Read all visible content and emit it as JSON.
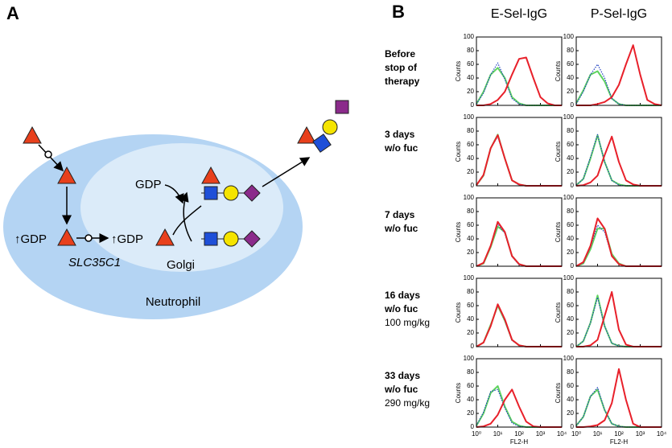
{
  "panel_a": {
    "label": "A",
    "gdp_donor": "GDP",
    "gdp_cytosol": "↑GDP",
    "gdp_golgi": "↑GDP",
    "transporter": "SLC35C1",
    "golgi": "Golgi",
    "cell": "Neutrophil"
  },
  "panel_b": {
    "label": "B",
    "columns": [
      "E-Sel-IgG",
      "P-Sel-IgG"
    ],
    "rows": [
      {
        "lines": [
          "Before",
          "stop of",
          "therapy"
        ]
      },
      {
        "lines": [
          "3 days",
          "w/o fuc"
        ]
      },
      {
        "lines": [
          "7 days",
          "w/o fuc"
        ]
      },
      {
        "lines": [
          "16 days",
          "w/o fuc"
        ],
        "dose": "100 mg/kg"
      },
      {
        "lines": [
          "33 days",
          "w/o fuc"
        ],
        "dose": "290 mg/kg"
      }
    ]
  },
  "chart_data": [
    {
      "type": "line",
      "y_label": "Counts",
      "xscale": "log",
      "xlim": [
        1,
        10000
      ],
      "xticks": [
        1,
        10,
        100,
        1000,
        10000
      ],
      "ylim": [
        0,
        100
      ],
      "yticks": [
        0,
        20,
        40,
        60,
        80,
        100
      ],
      "x": [
        1,
        2.15,
        4.64,
        10,
        21.5,
        46.4,
        100,
        215,
        464,
        1000,
        2150,
        4640,
        10000
      ],
      "series": [
        {
          "color": "#5fd35f",
          "line_style": "solid",
          "values": [
            2,
            20,
            45,
            55,
            40,
            12,
            3,
            0,
            0,
            0,
            0,
            0,
            0
          ]
        },
        {
          "color": "#2040c0",
          "line_style": "dotted",
          "values": [
            2,
            18,
            45,
            62,
            38,
            10,
            2,
            0,
            0,
            0,
            0,
            0,
            0
          ]
        },
        {
          "color": "#e8202a",
          "line_style": "solid",
          "values": [
            0,
            0,
            2,
            8,
            20,
            45,
            68,
            70,
            40,
            12,
            3,
            0,
            0
          ]
        }
      ]
    },
    {
      "type": "line",
      "y_label": "Counts",
      "xscale": "log",
      "xlim": [
        1,
        10000
      ],
      "xticks": [
        1,
        10,
        100,
        1000,
        10000
      ],
      "ylim": [
        0,
        100
      ],
      "yticks": [
        0,
        20,
        40,
        60,
        80,
        100
      ],
      "x": [
        1,
        2.15,
        4.64,
        10,
        21.5,
        46.4,
        100,
        215,
        464,
        1000,
        2150,
        4640,
        10000
      ],
      "series": [
        {
          "color": "#5fd35f",
          "line_style": "solid",
          "values": [
            3,
            22,
            45,
            50,
            35,
            10,
            2,
            0,
            0,
            0,
            0,
            0,
            0
          ]
        },
        {
          "color": "#2040c0",
          "line_style": "dotted",
          "values": [
            2,
            20,
            45,
            60,
            40,
            10,
            2,
            0,
            0,
            0,
            0,
            0,
            0
          ]
        },
        {
          "color": "#e8202a",
          "line_style": "solid",
          "values": [
            0,
            0,
            0,
            2,
            5,
            12,
            30,
            60,
            88,
            45,
            8,
            2,
            0
          ]
        }
      ]
    },
    {
      "type": "line",
      "y_label": "Counts",
      "xscale": "log",
      "xlim": [
        1,
        10000
      ],
      "xticks": [
        1,
        10,
        100,
        1000,
        10000
      ],
      "ylim": [
        0,
        100
      ],
      "yticks": [
        0,
        20,
        40,
        60,
        80,
        100
      ],
      "x": [
        1,
        2.15,
        4.64,
        10,
        21.5,
        46.4,
        100,
        215,
        464,
        1000,
        2150,
        4640,
        10000
      ],
      "series": [
        {
          "color": "#5fd35f",
          "line_style": "solid",
          "values": [
            1,
            15,
            55,
            75,
            40,
            8,
            2,
            0,
            0,
            0,
            0,
            0,
            0
          ]
        },
        {
          "color": "#2040c0",
          "line_style": "dotted",
          "values": [
            1,
            15,
            55,
            72,
            40,
            8,
            1,
            0,
            0,
            0,
            0,
            0,
            0
          ]
        },
        {
          "color": "#e8202a",
          "line_style": "solid",
          "values": [
            1,
            16,
            55,
            74,
            40,
            8,
            2,
            0,
            0,
            0,
            0,
            0,
            0
          ]
        }
      ]
    },
    {
      "type": "line",
      "y_label": "Counts",
      "xscale": "log",
      "xlim": [
        1,
        10000
      ],
      "xticks": [
        1,
        10,
        100,
        1000,
        10000
      ],
      "ylim": [
        0,
        100
      ],
      "yticks": [
        0,
        20,
        40,
        60,
        80,
        100
      ],
      "x": [
        1,
        2.15,
        4.64,
        10,
        21.5,
        46.4,
        100,
        215,
        464,
        1000,
        2150,
        4640,
        10000
      ],
      "series": [
        {
          "color": "#5fd35f",
          "line_style": "solid",
          "values": [
            1,
            10,
            40,
            74,
            35,
            8,
            2,
            0,
            0,
            0,
            0,
            0,
            0
          ]
        },
        {
          "color": "#2040c0",
          "line_style": "dotted",
          "values": [
            1,
            10,
            42,
            75,
            35,
            8,
            1,
            0,
            0,
            0,
            0,
            0,
            0
          ]
        },
        {
          "color": "#e8202a",
          "line_style": "solid",
          "values": [
            0,
            1,
            5,
            15,
            45,
            72,
            35,
            8,
            2,
            0,
            0,
            0,
            0
          ]
        }
      ]
    },
    {
      "type": "line",
      "y_label": "Counts",
      "xscale": "log",
      "xlim": [
        1,
        10000
      ],
      "xticks": [
        1,
        10,
        100,
        1000,
        10000
      ],
      "ylim": [
        0,
        100
      ],
      "yticks": [
        0,
        20,
        40,
        60,
        80,
        100
      ],
      "x": [
        1,
        2.15,
        4.64,
        10,
        21.5,
        46.4,
        100,
        215,
        464,
        1000,
        2150,
        4640,
        10000
      ],
      "series": [
        {
          "color": "#5fd35f",
          "line_style": "solid",
          "values": [
            0,
            4,
            28,
            58,
            50,
            15,
            3,
            0,
            0,
            0,
            0,
            0,
            0
          ]
        },
        {
          "color": "#2040c0",
          "line_style": "dotted",
          "values": [
            0,
            5,
            30,
            62,
            48,
            14,
            2,
            0,
            0,
            0,
            0,
            0,
            0
          ]
        },
        {
          "color": "#e8202a",
          "line_style": "solid",
          "values": [
            0,
            5,
            30,
            65,
            50,
            15,
            3,
            0,
            0,
            0,
            0,
            0,
            0
          ]
        }
      ]
    },
    {
      "type": "line",
      "y_label": "Counts",
      "xscale": "log",
      "xlim": [
        1,
        10000
      ],
      "xticks": [
        1,
        10,
        100,
        1000,
        10000
      ],
      "ylim": [
        0,
        100
      ],
      "yticks": [
        0,
        20,
        40,
        60,
        80,
        100
      ],
      "x": [
        1,
        2.15,
        4.64,
        10,
        21.5,
        46.4,
        100,
        215,
        464,
        1000,
        2150,
        4640,
        10000
      ],
      "series": [
        {
          "color": "#5fd35f",
          "line_style": "solid",
          "values": [
            0,
            4,
            25,
            55,
            55,
            18,
            4,
            0,
            0,
            0,
            0,
            0,
            0
          ]
        },
        {
          "color": "#2040c0",
          "line_style": "dotted",
          "values": [
            0,
            5,
            28,
            60,
            50,
            15,
            3,
            0,
            0,
            0,
            0,
            0,
            0
          ]
        },
        {
          "color": "#e8202a",
          "line_style": "solid",
          "values": [
            0,
            6,
            30,
            70,
            55,
            15,
            3,
            0,
            0,
            0,
            0,
            0,
            0
          ]
        }
      ]
    },
    {
      "type": "line",
      "y_label": "Counts",
      "xscale": "log",
      "xlim": [
        1,
        10000
      ],
      "xticks": [
        1,
        10,
        100,
        1000,
        10000
      ],
      "ylim": [
        0,
        100
      ],
      "yticks": [
        0,
        20,
        40,
        60,
        80,
        100
      ],
      "x": [
        1,
        2.15,
        4.64,
        10,
        21.5,
        46.4,
        100,
        215,
        464,
        1000,
        2150,
        4640,
        10000
      ],
      "series": [
        {
          "color": "#5fd35f",
          "line_style": "solid",
          "values": [
            0,
            6,
            32,
            60,
            38,
            10,
            2,
            0,
            0,
            0,
            0,
            0,
            0
          ]
        },
        {
          "color": "#2040c0",
          "line_style": "dotted",
          "values": [
            0,
            6,
            30,
            62,
            38,
            9,
            2,
            0,
            0,
            0,
            0,
            0,
            0
          ]
        },
        {
          "color": "#e8202a",
          "line_style": "solid",
          "values": [
            0,
            6,
            30,
            62,
            40,
            10,
            2,
            0,
            0,
            0,
            0,
            0,
            0
          ]
        }
      ]
    },
    {
      "type": "line",
      "y_label": "Counts",
      "xscale": "log",
      "xlim": [
        1,
        10000
      ],
      "xticks": [
        1,
        10,
        100,
        1000,
        10000
      ],
      "ylim": [
        0,
        100
      ],
      "yticks": [
        0,
        20,
        40,
        60,
        80,
        100
      ],
      "x": [
        1,
        2.15,
        4.64,
        10,
        21.5,
        46.4,
        100,
        215,
        464,
        1000,
        2150,
        4640,
        10000
      ],
      "series": [
        {
          "color": "#5fd35f",
          "line_style": "solid",
          "values": [
            0,
            8,
            35,
            75,
            30,
            5,
            1,
            0,
            0,
            0,
            0,
            0,
            0
          ]
        },
        {
          "color": "#2040c0",
          "line_style": "dotted",
          "values": [
            0,
            8,
            35,
            72,
            30,
            5,
            1,
            0,
            0,
            0,
            0,
            0,
            0
          ]
        },
        {
          "color": "#e8202a",
          "line_style": "solid",
          "values": [
            0,
            0,
            2,
            10,
            45,
            80,
            25,
            3,
            0,
            0,
            0,
            0,
            0
          ]
        }
      ]
    },
    {
      "type": "line",
      "y_label": "Counts",
      "x_label": "FL2-H",
      "xscale": "log",
      "xlim": [
        1,
        10000
      ],
      "xticks": [
        {
          "value": 1,
          "label": "10⁰"
        },
        {
          "value": 10,
          "label": "10¹"
        },
        {
          "value": 100,
          "label": "10²"
        },
        {
          "value": 1000,
          "label": "10³"
        },
        {
          "value": 10000,
          "label": "10⁴"
        }
      ],
      "ylim": [
        0,
        100
      ],
      "yticks": [
        0,
        20,
        40,
        60,
        80,
        100
      ],
      "x": [
        1,
        2.15,
        4.64,
        10,
        21.5,
        46.4,
        100,
        215,
        464,
        1000,
        2150,
        4640,
        10000
      ],
      "series": [
        {
          "color": "#5fd35f",
          "line_style": "solid",
          "values": [
            2,
            20,
            50,
            60,
            30,
            8,
            2,
            0,
            0,
            0,
            0,
            0,
            0
          ]
        },
        {
          "color": "#2040c0",
          "line_style": "dotted",
          "values": [
            2,
            22,
            52,
            55,
            28,
            6,
            1,
            0,
            0,
            0,
            0,
            0,
            0
          ]
        },
        {
          "color": "#e8202a",
          "line_style": "solid",
          "values": [
            0,
            1,
            5,
            18,
            40,
            55,
            30,
            8,
            1,
            0,
            0,
            0,
            0
          ]
        }
      ]
    },
    {
      "type": "line",
      "y_label": "Counts",
      "x_label": "FL2-H",
      "xscale": "log",
      "xlim": [
        1,
        10000
      ],
      "xticks": [
        {
          "value": 1,
          "label": "10⁰"
        },
        {
          "value": 10,
          "label": "10¹"
        },
        {
          "value": 100,
          "label": "10²"
        },
        {
          "value": 1000,
          "label": "10³"
        },
        {
          "value": 10000,
          "label": "10⁴"
        }
      ],
      "ylim": [
        0,
        100
      ],
      "yticks": [
        0,
        20,
        40,
        60,
        80,
        100
      ],
      "x": [
        1,
        2.15,
        4.64,
        10,
        21.5,
        46.4,
        100,
        215,
        464,
        1000,
        2150,
        4640,
        10000
      ],
      "series": [
        {
          "color": "#5fd35f",
          "line_style": "solid",
          "values": [
            2,
            15,
            45,
            55,
            25,
            5,
            1,
            0,
            0,
            0,
            0,
            0,
            0
          ]
        },
        {
          "color": "#2040c0",
          "line_style": "dotted",
          "values": [
            2,
            15,
            45,
            58,
            25,
            5,
            1,
            0,
            0,
            0,
            0,
            0,
            0
          ]
        },
        {
          "color": "#e8202a",
          "line_style": "solid",
          "values": [
            0,
            0,
            1,
            3,
            10,
            35,
            85,
            40,
            5,
            0,
            0,
            0,
            0
          ]
        }
      ]
    }
  ]
}
